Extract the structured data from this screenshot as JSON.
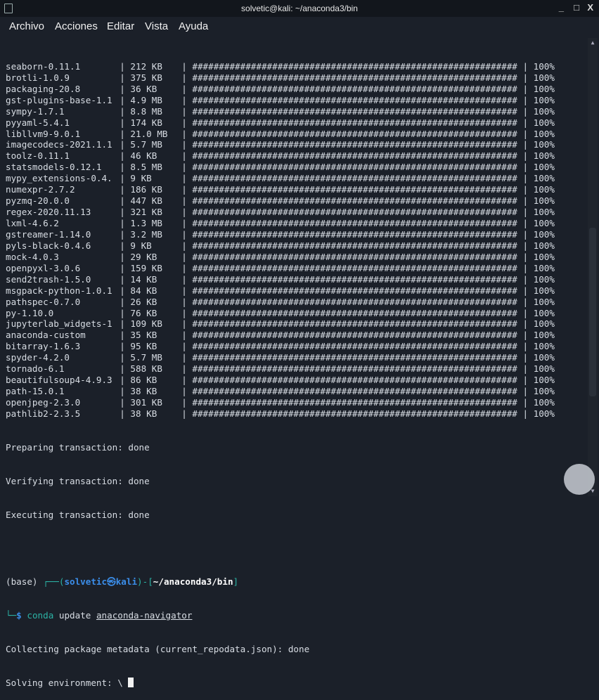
{
  "window": {
    "title": "solvetic@kali: ~/anaconda3/bin"
  },
  "menu": [
    "Archivo",
    "Acciones",
    "Editar",
    "Vista",
    "Ayuda"
  ],
  "packages": [
    {
      "name": "seaborn-0.11.1",
      "size": "212 KB",
      "percent": "100%"
    },
    {
      "name": "brotli-1.0.9",
      "size": "375 KB",
      "percent": "100%"
    },
    {
      "name": "packaging-20.8",
      "size": "36 KB",
      "percent": "100%"
    },
    {
      "name": "gst-plugins-base-1.1",
      "size": "4.9 MB",
      "percent": "100%"
    },
    {
      "name": "sympy-1.7.1",
      "size": "8.8 MB",
      "percent": "100%"
    },
    {
      "name": "pyyaml-5.4.1",
      "size": "174 KB",
      "percent": "100%"
    },
    {
      "name": "libllvm9-9.0.1",
      "size": "21.0 MB",
      "percent": "100%"
    },
    {
      "name": "imagecodecs-2021.1.1",
      "size": "5.7 MB",
      "percent": "100%"
    },
    {
      "name": "toolz-0.11.1",
      "size": "46 KB",
      "percent": "100%"
    },
    {
      "name": "statsmodels-0.12.1",
      "size": "8.5 MB",
      "percent": "100%"
    },
    {
      "name": "mypy_extensions-0.4.",
      "size": "9 KB",
      "percent": "100%"
    },
    {
      "name": "numexpr-2.7.2",
      "size": "186 KB",
      "percent": "100%"
    },
    {
      "name": "pyzmq-20.0.0",
      "size": "447 KB",
      "percent": "100%"
    },
    {
      "name": "regex-2020.11.13",
      "size": "321 KB",
      "percent": "100%"
    },
    {
      "name": "lxml-4.6.2",
      "size": "1.3 MB",
      "percent": "100%"
    },
    {
      "name": "gstreamer-1.14.0",
      "size": "3.2 MB",
      "percent": "100%"
    },
    {
      "name": "pyls-black-0.4.6",
      "size": "9 KB",
      "percent": "100%"
    },
    {
      "name": "mock-4.0.3",
      "size": "29 KB",
      "percent": "100%"
    },
    {
      "name": "openpyxl-3.0.6",
      "size": "159 KB",
      "percent": "100%"
    },
    {
      "name": "send2trash-1.5.0",
      "size": "14 KB",
      "percent": "100%"
    },
    {
      "name": "msgpack-python-1.0.1",
      "size": "84 KB",
      "percent": "100%"
    },
    {
      "name": "pathspec-0.7.0",
      "size": "26 KB",
      "percent": "100%"
    },
    {
      "name": "py-1.10.0",
      "size": "76 KB",
      "percent": "100%"
    },
    {
      "name": "jupyterlab_widgets-1",
      "size": "109 KB",
      "percent": "100%"
    },
    {
      "name": "anaconda-custom",
      "size": "35 KB",
      "percent": "100%"
    },
    {
      "name": "bitarray-1.6.3",
      "size": "95 KB",
      "percent": "100%"
    },
    {
      "name": "spyder-4.2.0",
      "size": "5.7 MB",
      "percent": "100%"
    },
    {
      "name": "tornado-6.1",
      "size": "588 KB",
      "percent": "100%"
    },
    {
      "name": "beautifulsoup4-4.9.3",
      "size": "86 KB",
      "percent": "100%"
    },
    {
      "name": "path-15.0.1",
      "size": "38 KB",
      "percent": "100%"
    },
    {
      "name": "openjpeg-2.3.0",
      "size": "301 KB",
      "percent": "100%"
    },
    {
      "name": "pathlib2-2.3.5",
      "size": "38 KB",
      "percent": "100%"
    }
  ],
  "status_lines": [
    "Preparing transaction: done",
    "Verifying transaction: done",
    "Executing transaction: done"
  ],
  "prompt": {
    "env": "(base)",
    "user": "solvetic",
    "at": "㉿",
    "host": "kali",
    "path": "~/anaconda3/bin",
    "symbol": "$",
    "cmd": "conda",
    "args": "update",
    "target": "anaconda-navigator"
  },
  "output": [
    "Collecting package metadata (current_repodata.json): done",
    "Solving environment: \\ "
  ],
  "colors": {
    "background": "#1b2029",
    "prompt_blue": "#3b8eea",
    "prompt_teal": "#2bb3a5",
    "text": "#d8dde4"
  }
}
